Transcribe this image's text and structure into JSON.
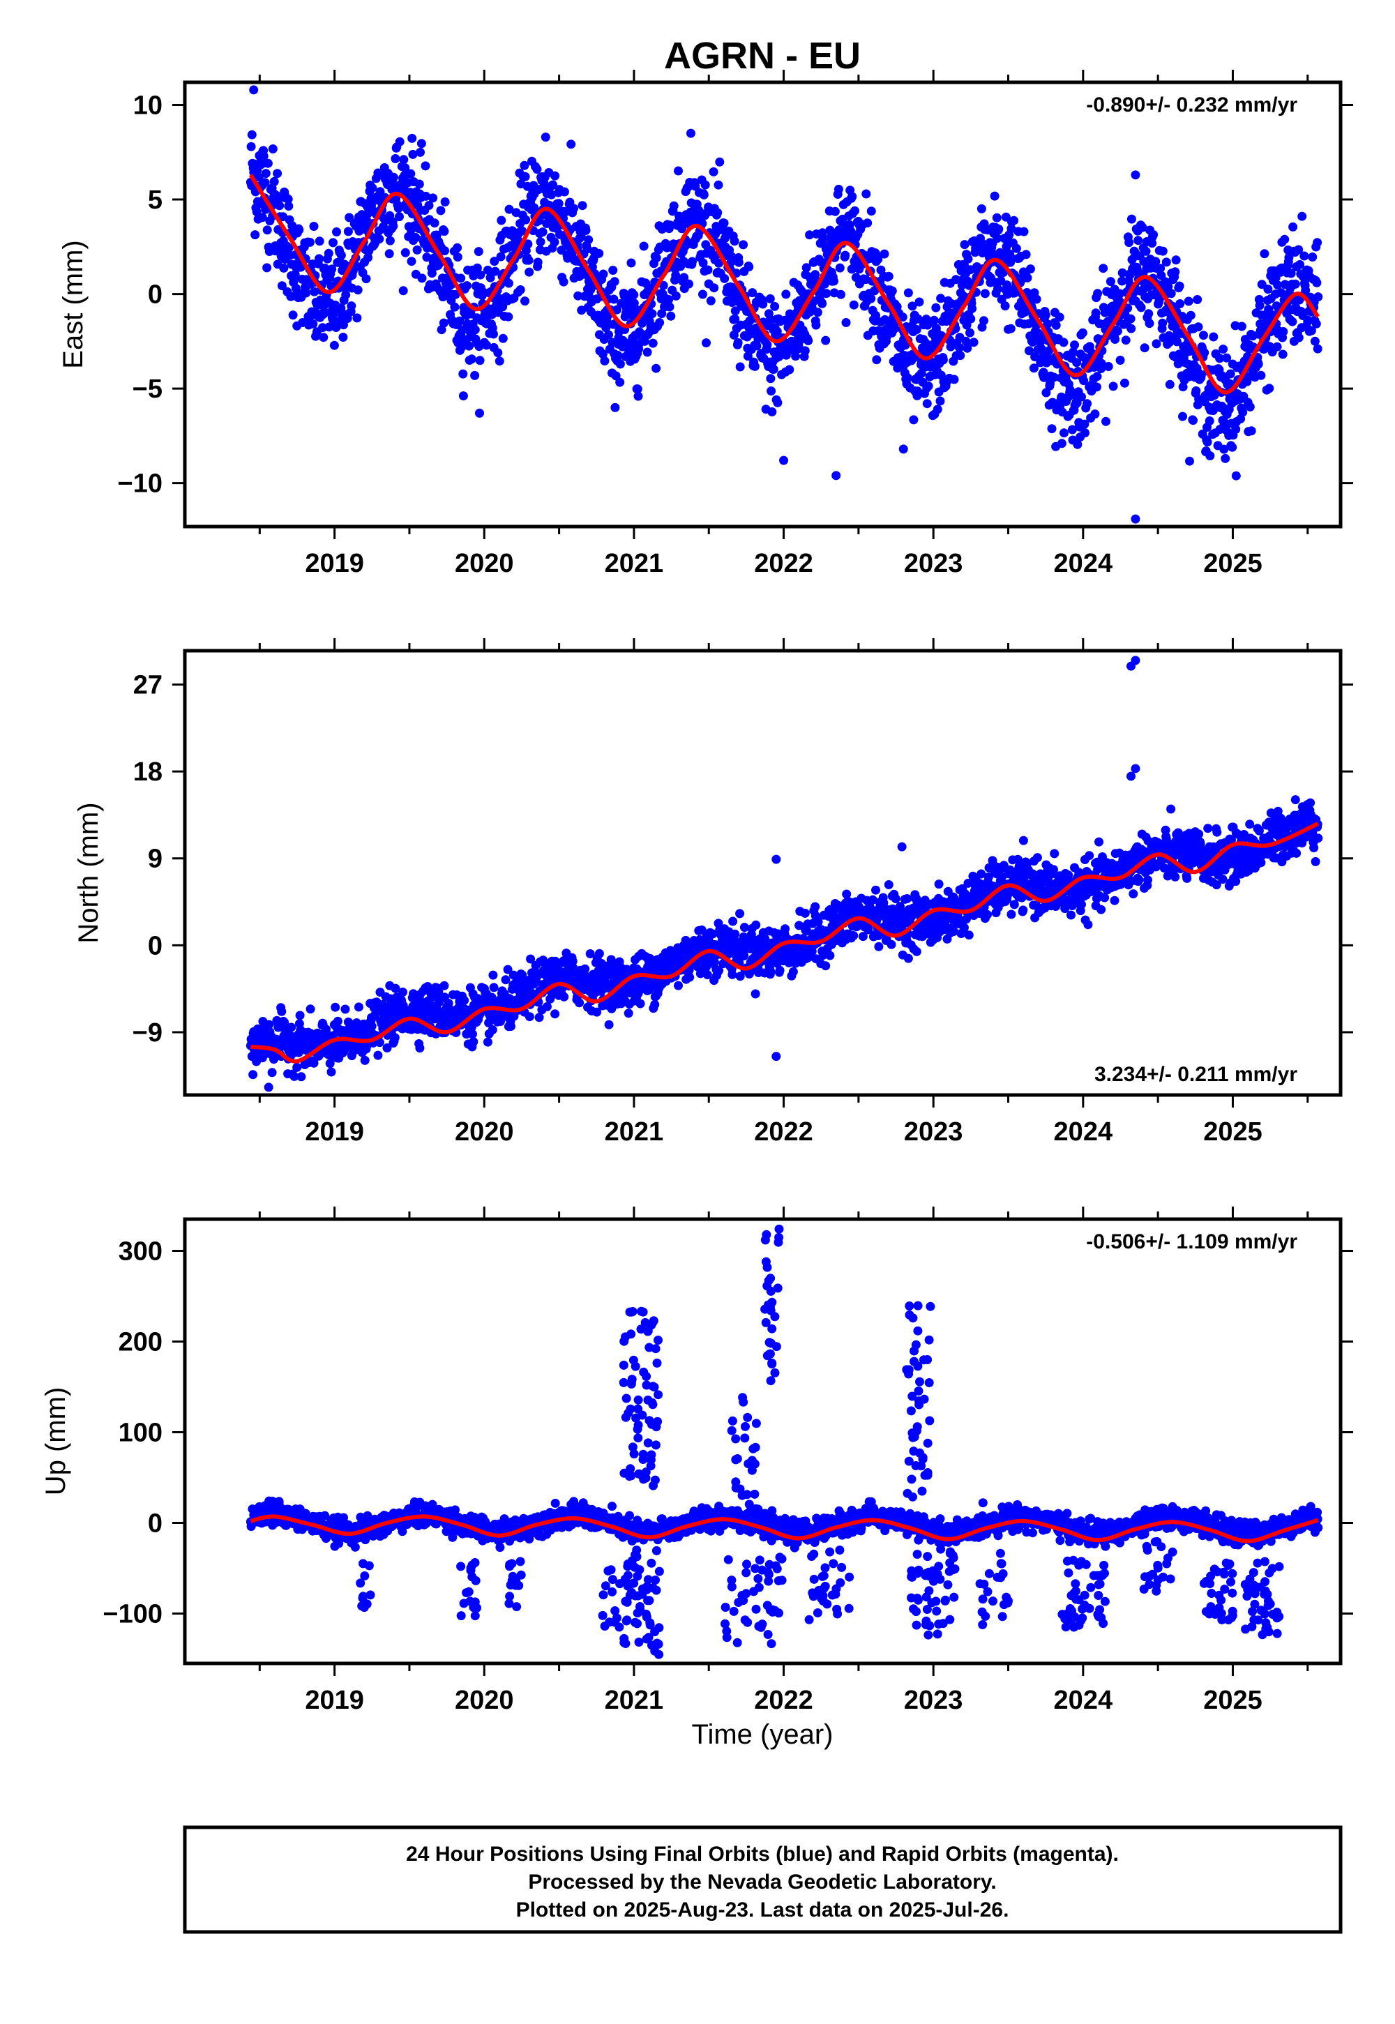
{
  "title": "AGRN - EU",
  "x_axis_label": "Time (year)",
  "footer": {
    "line1": "24 Hour Positions Using Final Orbits (blue) and Rapid Orbits (magenta).",
    "line2": "Processed by the Nevada Geodetic Laboratory.",
    "line3": "Plotted on 2025-Aug-23. Last data on 2025-Jul-26."
  },
  "colors": {
    "points": "#0000ff",
    "fit": "#ff0000",
    "frame": "#000000"
  },
  "chart_data": [
    {
      "type": "scatter",
      "ylabel": "East (mm)",
      "rate_label": "-0.890+/- 0.232 mm/yr",
      "rate_position": "top-right",
      "xlim": [
        2018.0,
        2025.72
      ],
      "ylim": [
        -12.3,
        11.2
      ],
      "yticks": [
        10,
        5,
        0,
        -5,
        -10
      ],
      "ytick_labels": [
        "10",
        "5",
        "0",
        "−5",
        "−10"
      ],
      "xticks": [
        2019,
        2020,
        2021,
        2022,
        2023,
        2024,
        2025
      ],
      "xtick_labels": [
        "2019",
        "2020",
        "2021",
        "2022",
        "2023",
        "2024",
        "2025"
      ],
      "data_start": 2018.44,
      "data_end": 2025.57,
      "model": {
        "trend_mm_per_yr": -0.89,
        "offset_at_2018_44": 3.2,
        "annual_amp": 3.2,
        "annual_peak_year_frac": 0.42,
        "noise_sd": 1.5
      },
      "fit_curve": {
        "x": [
          2018.44,
          2018.7,
          2018.96,
          2019.2,
          2019.42,
          2019.7,
          2019.95,
          2020.2,
          2020.42,
          2020.7,
          2020.95,
          2021.2,
          2021.42,
          2021.7,
          2021.95,
          2022.2,
          2022.42,
          2022.7,
          2022.95,
          2023.2,
          2023.42,
          2023.7,
          2023.95,
          2024.2,
          2024.42,
          2024.7,
          2024.95,
          2025.2,
          2025.42,
          2025.57
        ],
        "y": [
          6.3,
          3.0,
          0.1,
          2.8,
          5.3,
          2.1,
          -0.8,
          1.9,
          4.5,
          1.2,
          -1.7,
          1.0,
          3.6,
          0.4,
          -2.5,
          0.1,
          2.7,
          -0.5,
          -3.4,
          -0.7,
          1.8,
          -1.4,
          -4.3,
          -1.6,
          0.9,
          -2.2,
          -5.2,
          -2.4,
          0.0,
          -1.2
        ]
      },
      "outliers": [
        {
          "x": 2018.46,
          "y": 10.8
        },
        {
          "x": 2020.41,
          "y": 8.3
        },
        {
          "x": 2021.38,
          "y": 8.5
        },
        {
          "x": 2022.35,
          "y": -9.6
        },
        {
          "x": 2024.35,
          "y": -11.9
        },
        {
          "x": 2024.35,
          "y": 6.3
        },
        {
          "x": 2024.95,
          "y": -8.7
        },
        {
          "x": 2022.0,
          "y": -8.8
        },
        {
          "x": 2022.8,
          "y": -8.2
        }
      ]
    },
    {
      "type": "scatter",
      "ylabel": "North (mm)",
      "rate_label": "3.234+/- 0.211 mm/yr",
      "rate_position": "bottom-right",
      "xlim": [
        2018.0,
        2025.72
      ],
      "ylim": [
        -15.5,
        30.5
      ],
      "yticks": [
        27,
        18,
        9,
        0,
        -9
      ],
      "ytick_labels": [
        "27",
        "18",
        "9",
        "0",
        "−9"
      ],
      "xticks": [
        2019,
        2020,
        2021,
        2022,
        2023,
        2024,
        2025
      ],
      "xtick_labels": [
        "2019",
        "2020",
        "2021",
        "2022",
        "2023",
        "2024",
        "2025"
      ],
      "data_start": 2018.44,
      "data_end": 2025.57,
      "model": {
        "trend_mm_per_yr": 3.234,
        "offset_at_2018_44": -11.2,
        "annual_amp": 0.9,
        "annual_peak_year_frac": 0.5,
        "noise_sd": 1.3
      },
      "fit_curve": {
        "x": [
          2018.44,
          2018.6,
          2018.75,
          2019.0,
          2019.25,
          2019.5,
          2019.75,
          2020.0,
          2020.25,
          2020.5,
          2020.75,
          2021.0,
          2021.25,
          2021.5,
          2021.75,
          2022.0,
          2022.25,
          2022.5,
          2022.75,
          2023.0,
          2023.25,
          2023.5,
          2023.75,
          2024.0,
          2024.25,
          2024.5,
          2024.75,
          2025.0,
          2025.25,
          2025.57
        ],
        "y": [
          -10.5,
          -10.8,
          -12.0,
          -9.8,
          -9.8,
          -7.6,
          -9.0,
          -6.6,
          -6.6,
          -4.0,
          -5.8,
          -3.2,
          -3.2,
          -0.6,
          -2.4,
          0.2,
          0.4,
          2.8,
          1.0,
          3.6,
          3.6,
          6.2,
          4.6,
          7.0,
          7.0,
          9.4,
          7.6,
          10.4,
          10.4,
          12.6
        ]
      },
      "outliers": [
        {
          "x": 2024.35,
          "y": 29.5
        },
        {
          "x": 2024.32,
          "y": 28.9
        },
        {
          "x": 2024.35,
          "y": 18.3
        },
        {
          "x": 2024.32,
          "y": 17.5
        },
        {
          "x": 2021.95,
          "y": 8.9
        },
        {
          "x": 2022.79,
          "y": 10.2
        },
        {
          "x": 2018.56,
          "y": -14.7
        },
        {
          "x": 2021.95,
          "y": -11.5
        }
      ]
    },
    {
      "type": "scatter",
      "ylabel": "Up (mm)",
      "rate_label": "-0.506+/- 1.109 mm/yr",
      "rate_position": "top-right",
      "xlim": [
        2018.0,
        2025.72
      ],
      "ylim": [
        -155,
        335
      ],
      "yticks": [
        300,
        200,
        100,
        0,
        -100
      ],
      "ytick_labels": [
        "300",
        "200",
        "100",
        "0",
        "−100"
      ],
      "xticks": [
        2019,
        2020,
        2021,
        2022,
        2023,
        2024,
        2025
      ],
      "xtick_labels": [
        "2019",
        "2020",
        "2021",
        "2022",
        "2023",
        "2024",
        "2025"
      ],
      "data_start": 2018.44,
      "data_end": 2025.57,
      "model": {
        "trend_mm_per_yr": -0.506,
        "offset_at_2018_44": 0.0,
        "annual_amp": 9.0,
        "annual_peak_year_frac": 0.6,
        "noise_sd": 6.0
      },
      "fit_curve": {
        "x": [
          2018.44,
          2018.6,
          2018.85,
          2019.1,
          2019.35,
          2019.6,
          2019.85,
          2020.1,
          2020.35,
          2020.6,
          2020.85,
          2021.1,
          2021.35,
          2021.6,
          2021.85,
          2022.1,
          2022.35,
          2022.6,
          2022.85,
          2023.1,
          2023.35,
          2023.6,
          2023.85,
          2024.1,
          2024.35,
          2024.6,
          2024.85,
          2025.1,
          2025.35,
          2025.57
        ],
        "y": [
          2,
          7,
          -2,
          -12,
          0,
          7,
          -2,
          -14,
          -2,
          5,
          -4,
          -16,
          -4,
          4,
          -5,
          -17,
          -5,
          3,
          -6,
          -18,
          -6,
          2,
          -7,
          -19,
          -7,
          1,
          -8,
          -20,
          -8,
          3
        ]
      },
      "outlier_clusters": [
        {
          "center": 2018.58,
          "spread": 0.05,
          "ymin": 5,
          "ymax": 25,
          "count": 12
        },
        {
          "center": 2019.2,
          "spread": 0.05,
          "ymin": -95,
          "ymax": -30,
          "count": 10
        },
        {
          "center": 2019.9,
          "spread": 0.06,
          "ymin": -105,
          "ymax": -40,
          "count": 16
        },
        {
          "center": 2020.2,
          "spread": 0.05,
          "ymin": -110,
          "ymax": -40,
          "count": 14
        },
        {
          "center": 2020.85,
          "spread": 0.06,
          "ymin": -120,
          "ymax": -50,
          "count": 14
        },
        {
          "center": 2021.05,
          "spread": 0.12,
          "ymin": -150,
          "ymax": -30,
          "count": 60
        },
        {
          "center": 2021.05,
          "spread": 0.12,
          "ymin": 40,
          "ymax": 235,
          "count": 70
        },
        {
          "center": 2021.75,
          "spread": 0.1,
          "ymin": 30,
          "ymax": 150,
          "count": 25
        },
        {
          "center": 2021.92,
          "spread": 0.05,
          "ymin": 150,
          "ymax": 325,
          "count": 30
        },
        {
          "center": 2021.8,
          "spread": 0.2,
          "ymin": -135,
          "ymax": -30,
          "count": 45
        },
        {
          "center": 2022.3,
          "spread": 0.15,
          "ymin": -110,
          "ymax": -30,
          "count": 30
        },
        {
          "center": 2022.9,
          "spread": 0.08,
          "ymin": 20,
          "ymax": 245,
          "count": 45
        },
        {
          "center": 2023.0,
          "spread": 0.15,
          "ymin": -125,
          "ymax": -30,
          "count": 50
        },
        {
          "center": 2023.4,
          "spread": 0.1,
          "ymin": -115,
          "ymax": -30,
          "count": 20
        },
        {
          "center": 2024.0,
          "spread": 0.15,
          "ymin": -115,
          "ymax": -40,
          "count": 45
        },
        {
          "center": 2024.5,
          "spread": 0.1,
          "ymin": -80,
          "ymax": -20,
          "count": 20
        },
        {
          "center": 2024.9,
          "spread": 0.1,
          "ymin": -110,
          "ymax": -30,
          "count": 30
        },
        {
          "center": 2025.2,
          "spread": 0.12,
          "ymin": -125,
          "ymax": -40,
          "count": 40
        }
      ]
    }
  ]
}
